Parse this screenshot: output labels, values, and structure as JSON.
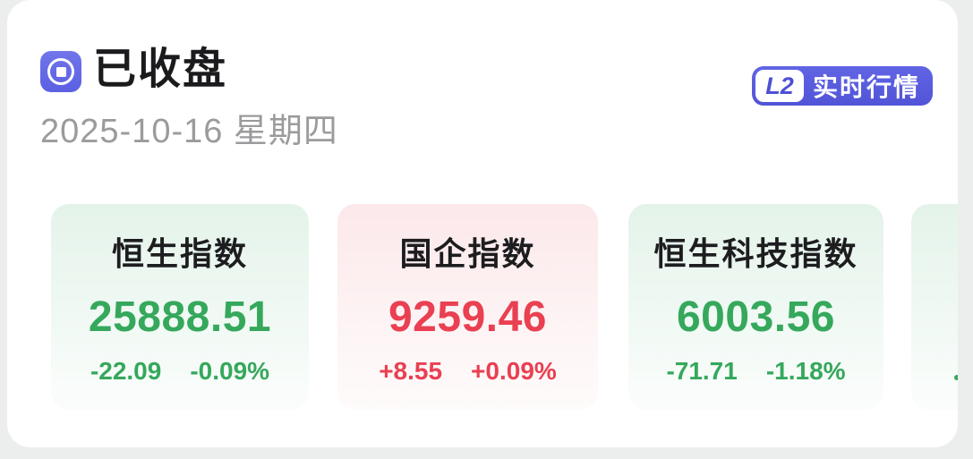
{
  "page": {
    "background_color": "#eceeed",
    "panel_color": "#ffffff"
  },
  "header": {
    "status_label": "已收盘",
    "date": "2025-10-16 星期四",
    "status_icon": "market-status-icon",
    "l2_badge": {
      "level_label": "L2",
      "text": "实时行情",
      "background_color": "#5558dc",
      "level_text_color": "#4d50d4"
    }
  },
  "colors": {
    "up_red": "#e94052",
    "down_green": "#35a85c",
    "card_green_bg_top": "#e4f3ea",
    "card_red_bg_top": "#fce8ea"
  },
  "indices": [
    {
      "name": "恒生指数",
      "value": "25888.51",
      "change": "-22.09",
      "change_pct": "-0.09%",
      "direction": "down"
    },
    {
      "name": "国企指数",
      "value": "9259.46",
      "change": "+8.55",
      "change_pct": "+0.09%",
      "direction": "up"
    },
    {
      "name": "恒生科技指数",
      "value": "6003.56",
      "change": "-71.71",
      "change_pct": "-1.18%",
      "direction": "down"
    },
    {
      "name": "",
      "value": "",
      "change": "-",
      "change_pct": "",
      "direction": "down",
      "partially_visible": true
    }
  ]
}
